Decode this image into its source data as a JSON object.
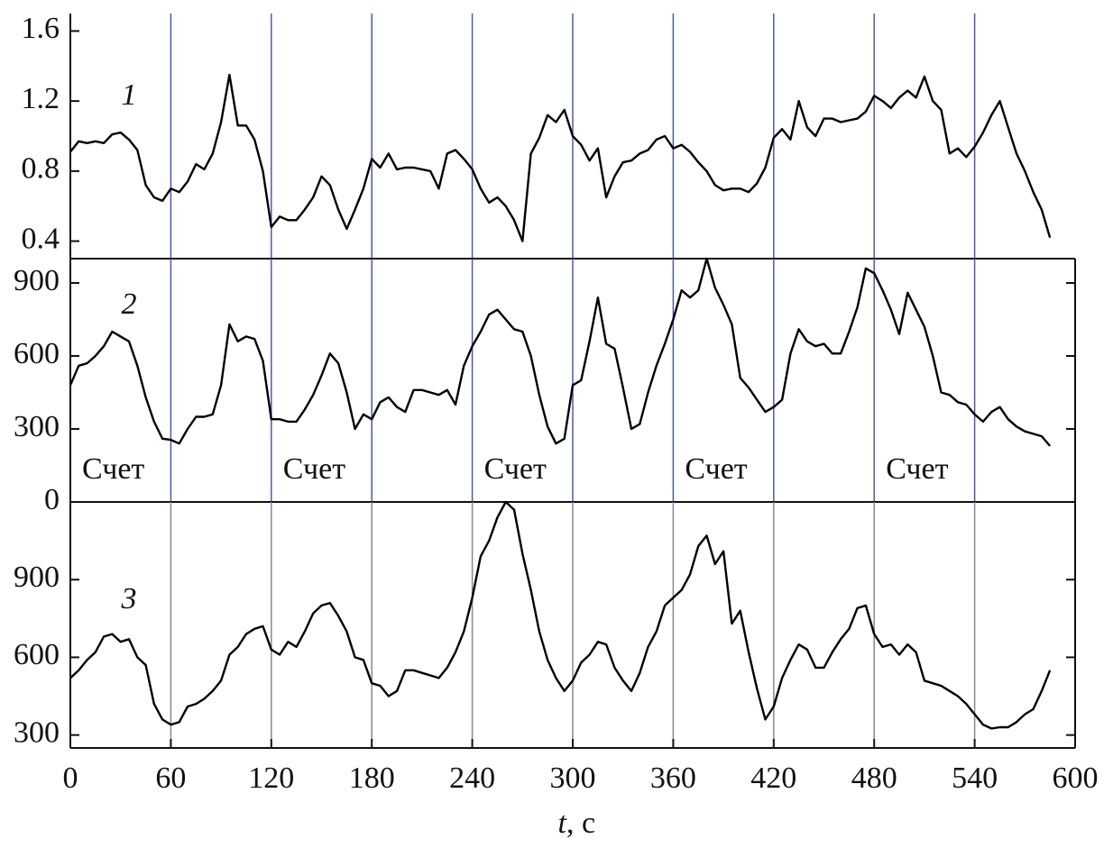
{
  "chart_data": {
    "type": "line",
    "xlim": [
      0,
      600
    ],
    "xticks": [
      0,
      60,
      120,
      180,
      240,
      300,
      360,
      420,
      480,
      540,
      600
    ],
    "xlabel_var": "t",
    "xlabel_rest": ", с",
    "x": [
      0,
      5,
      10,
      15,
      20,
      25,
      30,
      35,
      40,
      45,
      50,
      55,
      60,
      65,
      70,
      75,
      80,
      85,
      90,
      95,
      100,
      105,
      110,
      115,
      120,
      125,
      130,
      135,
      140,
      145,
      150,
      155,
      160,
      165,
      170,
      175,
      180,
      185,
      190,
      195,
      200,
      205,
      210,
      215,
      220,
      225,
      230,
      235,
      240,
      245,
      250,
      255,
      260,
      265,
      270,
      275,
      280,
      285,
      290,
      295,
      300,
      305,
      310,
      315,
      320,
      325,
      330,
      335,
      340,
      345,
      350,
      355,
      360,
      365,
      370,
      375,
      380,
      385,
      390,
      395,
      400,
      405,
      410,
      415,
      420,
      425,
      430,
      435,
      440,
      445,
      450,
      455,
      460,
      465,
      470,
      475,
      480,
      485,
      490,
      495,
      500,
      505,
      510,
      515,
      520,
      525,
      530,
      535,
      540,
      545,
      550,
      555,
      560,
      565,
      570,
      575,
      580,
      585
    ],
    "panels": [
      {
        "label": "1",
        "color": "#000000",
        "grid_color": "#4a5ab0",
        "ylim": [
          0.3,
          1.7
        ],
        "yticks": [
          0.4,
          0.8,
          1.2,
          1.6
        ],
        "values": [
          0.91,
          0.97,
          0.96,
          0.97,
          0.96,
          1.01,
          1.02,
          0.98,
          0.92,
          0.72,
          0.65,
          0.63,
          0.7,
          0.68,
          0.74,
          0.84,
          0.81,
          0.9,
          1.08,
          1.35,
          1.06,
          1.06,
          0.98,
          0.8,
          0.48,
          0.54,
          0.52,
          0.52,
          0.58,
          0.65,
          0.77,
          0.72,
          0.58,
          0.47,
          0.58,
          0.7,
          0.87,
          0.82,
          0.9,
          0.81,
          0.82,
          0.82,
          0.81,
          0.8,
          0.7,
          0.9,
          0.92,
          0.87,
          0.81,
          0.7,
          0.62,
          0.65,
          0.6,
          0.52,
          0.4,
          0.9,
          0.99,
          1.12,
          1.08,
          1.15,
          1.0,
          0.95,
          0.86,
          0.93,
          0.65,
          0.77,
          0.85,
          0.86,
          0.9,
          0.92,
          0.98,
          1.0,
          0.93,
          0.95,
          0.91,
          0.85,
          0.8,
          0.72,
          0.69,
          0.7,
          0.7,
          0.68,
          0.73,
          0.82,
          0.99,
          1.04,
          0.98,
          1.2,
          1.05,
          1.0,
          1.1,
          1.1,
          1.08,
          1.09,
          1.1,
          1.14,
          1.23,
          1.2,
          1.16,
          1.22,
          1.26,
          1.22,
          1.34,
          1.2,
          1.15,
          0.9,
          0.93,
          0.88,
          0.94,
          1.02,
          1.12,
          1.2,
          1.05,
          0.9,
          0.8,
          0.68,
          0.58,
          0.42
        ]
      },
      {
        "label": "2",
        "color": "#000000",
        "grid_color": "#4a5ab0",
        "ylim": [
          0,
          1000
        ],
        "yticks": [
          0,
          300,
          600,
          900
        ],
        "annotations": [
          {
            "text": "Счет",
            "x": 7
          },
          {
            "text": "Счет",
            "x": 127
          },
          {
            "text": "Счет",
            "x": 247
          },
          {
            "text": "Счет",
            "x": 367
          },
          {
            "text": "Счет",
            "x": 487
          }
        ],
        "values": [
          480,
          560,
          570,
          600,
          640,
          700,
          680,
          660,
          560,
          430,
          330,
          260,
          255,
          240,
          300,
          350,
          350,
          360,
          480,
          730,
          660,
          680,
          670,
          580,
          340,
          340,
          330,
          330,
          380,
          440,
          520,
          610,
          570,
          450,
          300,
          360,
          340,
          410,
          430,
          390,
          370,
          460,
          460,
          450,
          440,
          460,
          400,
          560,
          640,
          700,
          770,
          790,
          750,
          710,
          700,
          600,
          440,
          310,
          240,
          260,
          480,
          500,
          660,
          840,
          650,
          630,
          470,
          300,
          320,
          450,
          560,
          650,
          750,
          870,
          840,
          870,
          1000,
          880,
          810,
          730,
          510,
          470,
          420,
          370,
          390,
          420,
          610,
          710,
          660,
          640,
          650,
          610,
          610,
          700,
          800,
          960,
          940,
          870,
          790,
          690,
          860,
          790,
          720,
          600,
          450,
          440,
          410,
          400,
          360,
          330,
          370,
          390,
          340,
          310,
          290,
          280,
          270,
          230
        ]
      },
      {
        "label": "3",
        "color": "#000000",
        "grid_color": "#8a8a8a",
        "ylim": [
          250,
          1200
        ],
        "yticks": [
          300,
          600,
          900
        ],
        "values": [
          520,
          550,
          590,
          620,
          680,
          690,
          660,
          670,
          600,
          570,
          420,
          360,
          340,
          350,
          410,
          420,
          440,
          470,
          510,
          610,
          640,
          690,
          710,
          720,
          630,
          610,
          660,
          640,
          700,
          770,
          800,
          810,
          760,
          700,
          600,
          590,
          500,
          490,
          450,
          470,
          550,
          550,
          540,
          530,
          520,
          560,
          620,
          700,
          830,
          990,
          1050,
          1140,
          1200,
          1170,
          1000,
          860,
          700,
          590,
          520,
          470,
          510,
          580,
          610,
          660,
          650,
          560,
          510,
          470,
          540,
          640,
          700,
          800,
          830,
          860,
          920,
          1030,
          1070,
          960,
          1010,
          730,
          780,
          620,
          480,
          360,
          410,
          520,
          590,
          650,
          630,
          560,
          560,
          620,
          670,
          710,
          790,
          800,
          690,
          640,
          650,
          610,
          650,
          620,
          510,
          500,
          490,
          470,
          450,
          420,
          380,
          340,
          325,
          330,
          330,
          350,
          380,
          400,
          470,
          550
        ]
      }
    ]
  }
}
